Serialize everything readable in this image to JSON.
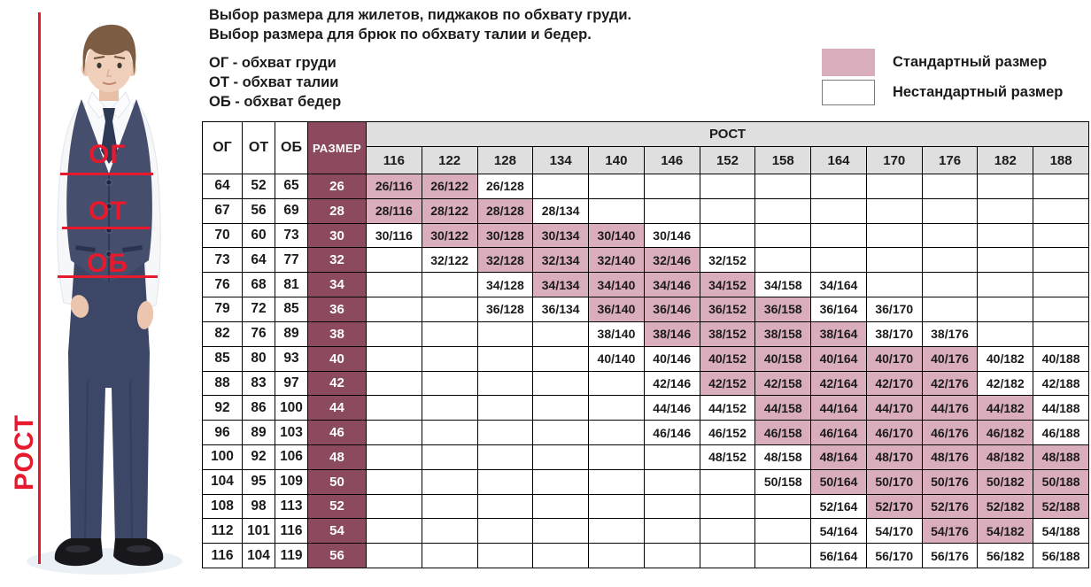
{
  "intro": {
    "line1": "Выбор размера для жилетов, пиджаков по обхвату груди.",
    "line2": "Выбор размера для брюк по обхвату талии и бедер.",
    "abbreviations": [
      "ОГ - обхват груди",
      "ОТ - обхват талии",
      "ОБ - обхват бедер"
    ]
  },
  "legend": {
    "standard_label": "Стандартный размер",
    "nonstandard_label": "Нестандартный размер"
  },
  "colors": {
    "standard_cell": "#D9ADBC",
    "nonstandard_cell": "#FFFFFF",
    "size_column": "#8B4A5E",
    "header_bg": "#DFDFDF",
    "annotation_red": "#E8192C"
  },
  "photo": {
    "chest_label": "ОГ",
    "waist_label": "ОТ",
    "hips_label": "ОБ",
    "height_label": "РОСТ"
  },
  "table": {
    "col_chest": "ОГ",
    "col_waist": "ОТ",
    "col_hips": "ОБ",
    "col_size": "РАЗМЕР",
    "col_height_group": "РОСТ",
    "heights": [
      "116",
      "122",
      "128",
      "134",
      "140",
      "146",
      "152",
      "158",
      "164",
      "170",
      "176",
      "182",
      "188"
    ],
    "rows": [
      {
        "og": "64",
        "ot": "52",
        "ob": "65",
        "size": "26",
        "cells": [
          "s|26/116",
          "s|26/122",
          "n|26/128",
          "",
          "",
          "",
          "",
          "",
          "",
          "",
          "",
          "",
          ""
        ]
      },
      {
        "og": "67",
        "ot": "56",
        "ob": "69",
        "size": "28",
        "cells": [
          "s|28/116",
          "s|28/122",
          "s|28/128",
          "n|28/134",
          "",
          "",
          "",
          "",
          "",
          "",
          "",
          "",
          ""
        ]
      },
      {
        "og": "70",
        "ot": "60",
        "ob": "73",
        "size": "30",
        "cells": [
          "n|30/116",
          "s|30/122",
          "s|30/128",
          "s|30/134",
          "s|30/140",
          "n|30/146",
          "",
          "",
          "",
          "",
          "",
          "",
          ""
        ]
      },
      {
        "og": "73",
        "ot": "64",
        "ob": "77",
        "size": "32",
        "cells": [
          "",
          "n|32/122",
          "s|32/128",
          "s|32/134",
          "s|32/140",
          "s|32/146",
          "n|32/152",
          "",
          "",
          "",
          "",
          "",
          ""
        ]
      },
      {
        "og": "76",
        "ot": "68",
        "ob": "81",
        "size": "34",
        "cells": [
          "",
          "",
          "n|34/128",
          "s|34/134",
          "s|34/140",
          "s|34/146",
          "s|34/152",
          "n|34/158",
          "n|34/164",
          "",
          "",
          "",
          ""
        ]
      },
      {
        "og": "79",
        "ot": "72",
        "ob": "85",
        "size": "36",
        "cells": [
          "",
          "",
          "n|36/128",
          "n|36/134",
          "s|36/140",
          "s|36/146",
          "s|36/152",
          "s|36/158",
          "n|36/164",
          "n|36/170",
          "",
          "",
          ""
        ]
      },
      {
        "og": "82",
        "ot": "76",
        "ob": "89",
        "size": "38",
        "cells": [
          "",
          "",
          "",
          "",
          "n|38/140",
          "s|38/146",
          "s|38/152",
          "s|38/158",
          "s|38/164",
          "n|38/170",
          "n|38/176",
          "",
          ""
        ]
      },
      {
        "og": "85",
        "ot": "80",
        "ob": "93",
        "size": "40",
        "cells": [
          "",
          "",
          "",
          "",
          "n|40/140",
          "n|40/146",
          "s|40/152",
          "s|40/158",
          "s|40/164",
          "s|40/170",
          "s|40/176",
          "n|40/182",
          "n|40/188"
        ]
      },
      {
        "og": "88",
        "ot": "83",
        "ob": "97",
        "size": "42",
        "cells": [
          "",
          "",
          "",
          "",
          "",
          "n|42/146",
          "s|42/152",
          "s|42/158",
          "s|42/164",
          "s|42/170",
          "s|42/176",
          "n|42/182",
          "n|42/188"
        ]
      },
      {
        "og": "92",
        "ot": "86",
        "ob": "100",
        "size": "44",
        "cells": [
          "",
          "",
          "",
          "",
          "",
          "n|44/146",
          "n|44/152",
          "s|44/158",
          "s|44/164",
          "s|44/170",
          "s|44/176",
          "s|44/182",
          "n|44/188"
        ]
      },
      {
        "og": "96",
        "ot": "89",
        "ob": "103",
        "size": "46",
        "cells": [
          "",
          "",
          "",
          "",
          "",
          "n|46/146",
          "n|46/152",
          "s|46/158",
          "s|46/164",
          "s|46/170",
          "s|46/176",
          "s|46/182",
          "n|46/188"
        ]
      },
      {
        "og": "100",
        "ot": "92",
        "ob": "106",
        "size": "48",
        "cells": [
          "",
          "",
          "",
          "",
          "",
          "",
          "n|48/152",
          "n|48/158",
          "s|48/164",
          "s|48/170",
          "s|48/176",
          "s|48/182",
          "s|48/188"
        ]
      },
      {
        "og": "104",
        "ot": "95",
        "ob": "109",
        "size": "50",
        "cells": [
          "",
          "",
          "",
          "",
          "",
          "",
          "",
          "n|50/158",
          "s|50/164",
          "s|50/170",
          "s|50/176",
          "s|50/182",
          "s|50/188"
        ]
      },
      {
        "og": "108",
        "ot": "98",
        "ob": "113",
        "size": "52",
        "cells": [
          "",
          "",
          "",
          "",
          "",
          "",
          "",
          "",
          "n|52/164",
          "s|52/170",
          "s|52/176",
          "s|52/182",
          "s|52/188"
        ]
      },
      {
        "og": "112",
        "ot": "101",
        "ob": "116",
        "size": "54",
        "cells": [
          "",
          "",
          "",
          "",
          "",
          "",
          "",
          "",
          "n|54/164",
          "n|54/170",
          "s|54/176",
          "s|54/182",
          "n|54/188"
        ]
      },
      {
        "og": "116",
        "ot": "104",
        "ob": "119",
        "size": "56",
        "cells": [
          "",
          "",
          "",
          "",
          "",
          "",
          "",
          "",
          "n|56/164",
          "n|56/170",
          "n|56/176",
          "n|56/182",
          "n|56/188"
        ]
      }
    ]
  }
}
